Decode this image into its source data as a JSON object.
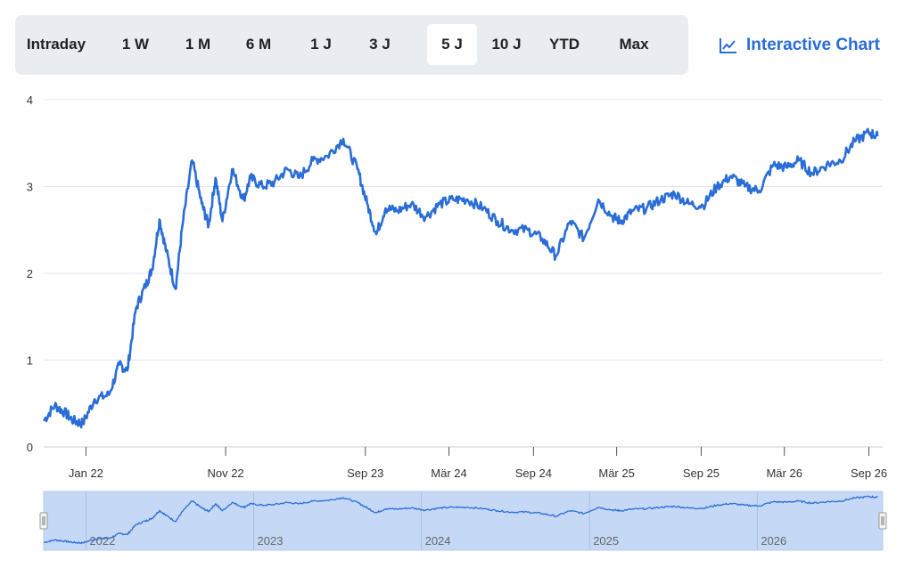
{
  "ranges": [
    {
      "label": "Intraday",
      "active": false
    },
    {
      "label": "1 W",
      "active": false
    },
    {
      "label": "1 M",
      "active": false
    },
    {
      "label": "6 M",
      "active": false
    },
    {
      "label": "1 J",
      "active": false
    },
    {
      "label": "3 J",
      "active": false
    },
    {
      "label": "5 J",
      "active": true
    },
    {
      "label": "10 J",
      "active": false
    },
    {
      "label": "YTD",
      "active": false
    },
    {
      "label": "Max",
      "active": false
    }
  ],
  "interactive_chart": {
    "label": "Interactive Chart",
    "icon": "line-chart-icon"
  },
  "colors": {
    "line": "#2a6dd6",
    "navigator_fill": "#c5d8f5",
    "grid": "#e6e6e6",
    "accent": "#2a6dd6"
  },
  "chart_data": {
    "type": "line",
    "ylim": [
      0,
      4
    ],
    "yticks": [
      0,
      1,
      2,
      3,
      4
    ],
    "xlim": [
      "2021-10-01",
      "2026-10-01"
    ],
    "xticks": [
      {
        "date": "2022-01-01",
        "label": "Jan 22"
      },
      {
        "date": "2022-11-01",
        "label": "Nov 22"
      },
      {
        "date": "2023-09-01",
        "label": "Sep 23"
      },
      {
        "date": "2024-03-01",
        "label": "Mär 24"
      },
      {
        "date": "2024-09-01",
        "label": "Sep 24"
      },
      {
        "date": "2025-03-01",
        "label": "Mär 25"
      },
      {
        "date": "2025-09-01",
        "label": "Sep 25"
      },
      {
        "date": "2026-03-01",
        "label": "Mär 26"
      },
      {
        "date": "2026-09-01",
        "label": "Sep 26"
      }
    ],
    "grid": true,
    "series": [
      {
        "x": [
          "2021-10-01",
          "2021-10-25",
          "2021-11-15",
          "2021-12-05",
          "2021-12-25",
          "2022-01-20",
          "2022-02-20",
          "2022-03-15",
          "2022-04-01",
          "2022-04-20",
          "2022-05-10",
          "2022-05-25",
          "2022-06-10",
          "2022-06-25",
          "2022-07-15",
          "2022-07-30",
          "2022-08-20",
          "2022-09-10",
          "2022-09-25",
          "2022-10-10",
          "2022-10-25",
          "2022-11-15",
          "2022-12-10",
          "2022-12-25",
          "2023-01-20",
          "2023-02-15",
          "2023-03-15",
          "2023-04-10",
          "2023-05-10",
          "2023-06-10",
          "2023-07-15",
          "2023-08-15",
          "2023-09-05",
          "2023-09-25",
          "2023-10-15",
          "2023-11-10",
          "2023-12-10",
          "2024-01-10",
          "2024-02-10",
          "2024-03-10",
          "2024-04-10",
          "2024-05-15",
          "2024-06-15",
          "2024-07-15",
          "2024-08-20",
          "2024-09-20",
          "2024-10-20",
          "2024-11-20",
          "2024-12-20",
          "2025-01-20",
          "2025-02-20",
          "2025-03-10",
          "2025-04-05",
          "2025-05-05",
          "2025-06-05",
          "2025-07-05",
          "2025-08-05",
          "2025-09-05",
          "2025-10-05",
          "2025-11-05",
          "2025-12-05",
          "2026-01-05",
          "2026-02-05",
          "2026-03-05",
          "2026-04-01",
          "2026-05-01",
          "2026-06-01",
          "2026-07-01",
          "2026-08-01",
          "2026-09-01",
          "2026-09-20"
        ],
        "values": [
          0.3,
          0.48,
          0.4,
          0.3,
          0.27,
          0.55,
          0.6,
          0.95,
          0.88,
          1.6,
          1.85,
          2.05,
          2.62,
          2.25,
          1.82,
          2.55,
          3.3,
          2.8,
          2.55,
          3.1,
          2.6,
          3.2,
          2.85,
          3.1,
          3.0,
          3.05,
          3.2,
          3.1,
          3.3,
          3.35,
          3.55,
          3.2,
          2.8,
          2.45,
          2.75,
          2.72,
          2.8,
          2.65,
          2.8,
          2.85,
          2.85,
          2.75,
          2.6,
          2.5,
          2.5,
          2.4,
          2.2,
          2.6,
          2.4,
          2.85,
          2.65,
          2.6,
          2.72,
          2.75,
          2.85,
          2.92,
          2.8,
          2.78,
          3.0,
          3.12,
          3.0,
          2.95,
          3.25,
          3.22,
          3.3,
          3.15,
          3.25,
          3.3,
          3.52,
          3.62,
          3.58
        ]
      }
    ],
    "navigator": {
      "year_labels": [
        {
          "date": "2022-01-01",
          "label": "2022"
        },
        {
          "date": "2023-01-01",
          "label": "2023"
        },
        {
          "date": "2024-01-01",
          "label": "2024"
        },
        {
          "date": "2025-01-01",
          "label": "2025"
        },
        {
          "date": "2026-01-01",
          "label": "2026"
        }
      ]
    }
  }
}
